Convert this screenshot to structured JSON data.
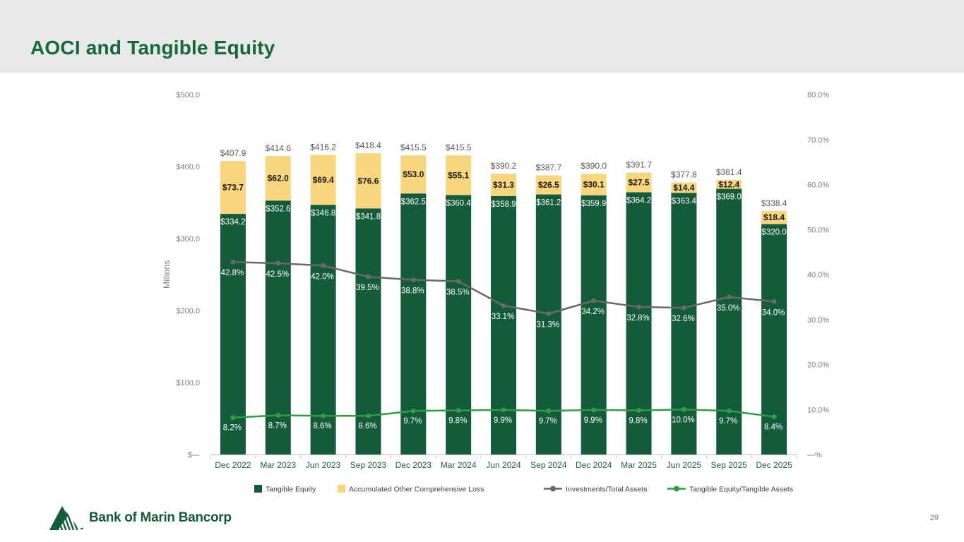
{
  "slide": {
    "title": "AOCI and Tangible Equity",
    "page_number": "29",
    "logo": {
      "text": "Bank of Marin Bancorp",
      "icon": "mountain-logo-icon"
    }
  },
  "colors": {
    "header_bg": "#E9E9E9",
    "title": "#17693C",
    "bar_green": "#145B3C",
    "bar_yellow": "#F8D67E",
    "line_gray": "#686868",
    "line_green": "#2E9E44",
    "axis_text": "#7F7F7F",
    "total_label": "#595959",
    "x_label": "#1E5E40",
    "legend_text": "#404040",
    "axis_line": "#BFBFBF",
    "segment_label_dark": "#1A1A1A",
    "segment_label_light": "#FFFFFF"
  },
  "chart_data": {
    "type": "bar",
    "subtype": "stacked-columns-with-line-overlays",
    "grid": false,
    "categories": [
      "Dec 2022",
      "Mar 2023",
      "Jun 2023",
      "Sep 2023",
      "Dec 2023",
      "Mar 2024",
      "Jun 2024",
      "Sep 2024",
      "Dec 2024",
      "Mar 2025",
      "Jun 2025",
      "Sep 2025",
      "Dec 2025"
    ],
    "series": [
      {
        "name": "Tangible Equity",
        "type": "bar",
        "color": "#145B3C",
        "values": [
          334.2,
          352.6,
          346.8,
          341.8,
          362.5,
          360.4,
          358.9,
          361.2,
          359.9,
          364.2,
          363.4,
          369.0,
          320.0
        ],
        "labels": [
          "$334.2",
          "$352.6",
          "$346.8",
          "$341.8",
          "$362.5",
          "$360.4",
          "$358.9",
          "$361.2",
          "$359.9",
          "$364.2",
          "$363.4",
          "$369.0",
          "$320.0"
        ]
      },
      {
        "name": "Accumulated Other Comprehensive Loss",
        "type": "bar",
        "color": "#F8D67E",
        "values": [
          73.7,
          62.0,
          69.4,
          76.6,
          53.0,
          55.1,
          31.3,
          26.5,
          30.1,
          27.5,
          14.4,
          12.4,
          18.4
        ],
        "labels": [
          "$73.7",
          "$62.0",
          "$69.4",
          "$76.6",
          "$53.0",
          "$55.1",
          "$31.3",
          "$26.5",
          "$30.1",
          "$27.5",
          "$14.4",
          "$12.4",
          "$18.4"
        ]
      },
      {
        "name": "Investments/Total Assets",
        "type": "line",
        "color": "#686868",
        "values": [
          42.8,
          42.5,
          42.0,
          39.5,
          38.8,
          38.5,
          33.1,
          31.3,
          34.2,
          32.8,
          32.6,
          35.0,
          34.0
        ],
        "labels": [
          "42.8%",
          "42.5%",
          "42.0%",
          "39.5%",
          "38.8%",
          "38.5%",
          "33.1%",
          "31.3%",
          "34.2%",
          "32.8%",
          "32.6%",
          "35.0%",
          "34.0%"
        ]
      },
      {
        "name": "Tangible Equity/Tangible Assets",
        "type": "line",
        "color": "#2E9E44",
        "values": [
          8.2,
          8.7,
          8.6,
          8.6,
          9.7,
          9.8,
          9.9,
          9.7,
          9.9,
          9.8,
          10.0,
          9.7,
          8.4
        ],
        "labels": [
          "8.2%",
          "8.7%",
          "8.6%",
          "8.6%",
          "9.7%",
          "9.8%",
          "9.9%",
          "9.7%",
          "9.9%",
          "9.8%",
          "10.0%",
          "9.7%",
          "8.4%"
        ]
      }
    ],
    "total_labels": [
      "$407.9",
      "$414.6",
      "$416.2",
      "$418.4",
      "$415.5",
      "$415.5",
      "$390.2",
      "$387.7",
      "$390.0",
      "$391.7",
      "$377.8",
      "$381.4",
      "$338.4"
    ],
    "left_axis": {
      "title": "Millions",
      "min": 0,
      "max": 500,
      "tick_labels": [
        "$500.0",
        "$400.0",
        "$300.0",
        "$200.0",
        "$100.0",
        "$—"
      ]
    },
    "right_axis": {
      "min": 0,
      "max": 80,
      "tick_labels": [
        "80.0%",
        "70.0%",
        "60.0%",
        "50.0%",
        "40.0%",
        "30.0%",
        "20.0%",
        "10.0%",
        "—%"
      ]
    },
    "legend": {
      "position": "bottom",
      "entries": [
        "Tangible Equity",
        "Accumulated Other Comprehensive Loss",
        "Investments/Total Assets",
        "Tangible Equity/Tangible Assets"
      ]
    }
  }
}
